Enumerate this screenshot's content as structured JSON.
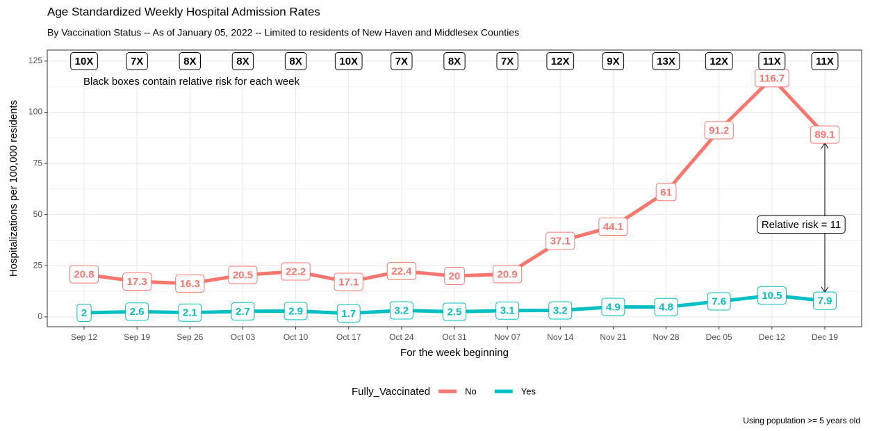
{
  "chart_data": {
    "type": "line",
    "title": "Age Standardized Weekly Hospital Admission Rates",
    "subtitle": "By Vaccination Status -- As of January 05, 2022 -- Limited to residents of New Haven and Middlesex Counties",
    "x_label": "For the week beginning",
    "y_label": "Hospitalizations per 100,000 residents",
    "categories": [
      "Sep 12",
      "Sep 19",
      "Sep 26",
      "Oct 03",
      "Oct 10",
      "Oct 17",
      "Oct 24",
      "Oct 31",
      "Nov 07",
      "Nov 14",
      "Nov 21",
      "Nov 28",
      "Dec 05",
      "Dec 12",
      "Dec 19"
    ],
    "series": [
      {
        "name": "No",
        "color": "#F8766D",
        "values": [
          20.8,
          17.3,
          16.3,
          20.5,
          22.2,
          17.1,
          22.4,
          20,
          20.9,
          37.1,
          44.1,
          61,
          91.2,
          116.7,
          89.1
        ]
      },
      {
        "name": "Yes",
        "color": "#00BFC4",
        "values": [
          2,
          2.6,
          2.1,
          2.7,
          2.9,
          1.7,
          3.2,
          2.5,
          3.1,
          3.2,
          4.9,
          4.8,
          7.6,
          10.5,
          7.9
        ]
      }
    ],
    "risk_labels": [
      "10X",
      "7X",
      "8X",
      "8X",
      "8X",
      "10X",
      "7X",
      "8X",
      "7X",
      "12X",
      "9X",
      "13X",
      "12X",
      "11X",
      "11X"
    ],
    "annotations": [
      "Black boxes contain relative risk for each week",
      "Relative risk = 11"
    ],
    "legend_title": "Fully_Vaccinated",
    "caption": "Using population >= 5 years old",
    "ylim": [
      -4.8,
      130.4
    ],
    "yticks": [
      0,
      25,
      50,
      75,
      100,
      125
    ],
    "grid": true
  }
}
